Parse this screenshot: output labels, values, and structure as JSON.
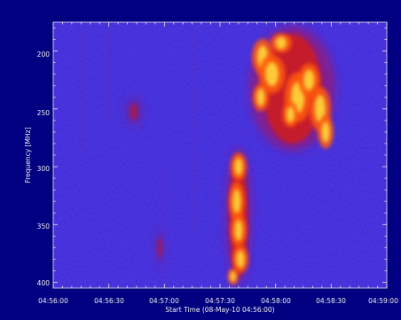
{
  "chart_data": {
    "type": "heatmap",
    "title": "",
    "xlabel": "Start Time (08-May-10 04:56:00)",
    "ylabel": "Frequency [MHz]",
    "x_tick_labels": [
      "04:56:00",
      "04:56:30",
      "04:57:00",
      "04:57:30",
      "04:58:00",
      "04:58:30",
      "04:59:00"
    ],
    "y_tick_labels": [
      "200",
      "250",
      "300",
      "350",
      "400"
    ],
    "y_ticks": [
      200,
      250,
      300,
      350,
      400
    ],
    "xlim_seconds_from_start": [
      0,
      180
    ],
    "ylim_mhz": [
      175,
      405
    ],
    "y_inverted": true,
    "colormap": "blue-red-yellow",
    "background_color": "#3a2cd8",
    "frame_color": "#000080",
    "bursts": [
      {
        "t_start_s": 108,
        "t_end_s": 150,
        "f_min_mhz": 180,
        "f_max_mhz": 285,
        "intensity": "high"
      },
      {
        "t_start_s": 94,
        "t_end_s": 106,
        "f_min_mhz": 285,
        "f_max_mhz": 400,
        "intensity": "high"
      },
      {
        "t_start_s": 39,
        "t_end_s": 48,
        "f_min_mhz": 240,
        "f_max_mhz": 265,
        "intensity": "low"
      },
      {
        "t_start_s": 55,
        "t_end_s": 60,
        "f_min_mhz": 355,
        "f_max_mhz": 385,
        "intensity": "low"
      }
    ]
  }
}
